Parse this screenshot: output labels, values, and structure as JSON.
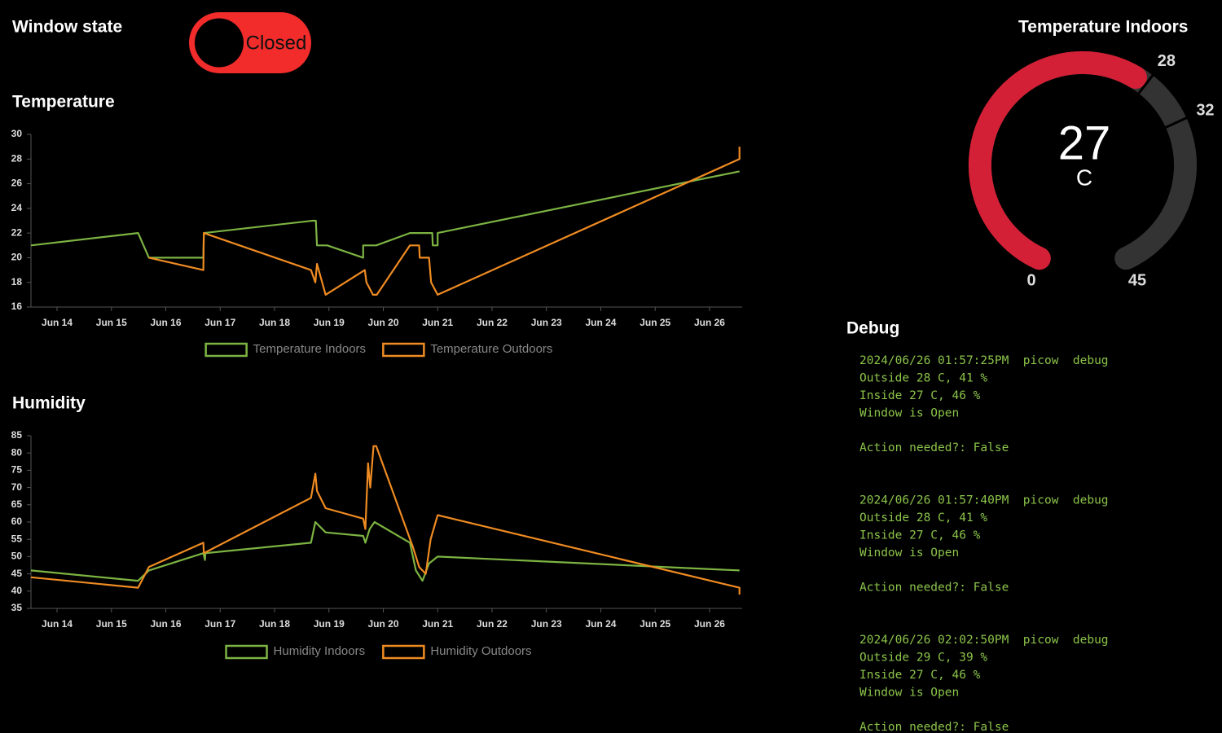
{
  "window_state": {
    "label": "Window state",
    "toggle": "Closed"
  },
  "debug": {
    "title": "Debug",
    "messages": [
      {
        "header": "2024/06/26 01:57:25PM  picow  debug",
        "lines": [
          "Outside 28 C, 41 %",
          "Inside 27 C, 46 %",
          "Window is Open",
          "Action needed?: False"
        ]
      },
      {
        "header": "2024/06/26 01:57:40PM  picow  debug",
        "lines": [
          "Outside 28 C, 41 %",
          "Inside 27 C, 46 %",
          "Window is Open",
          "Action needed?: False"
        ]
      },
      {
        "header": "2024/06/26 02:02:50PM  picow  debug",
        "lines": [
          "Outside 29 C, 39 %",
          "Inside 27 C, 46 %",
          "Window is Open",
          "Action needed?: False"
        ]
      }
    ]
  },
  "chart_data": [
    {
      "type": "line",
      "title": "Temperature",
      "xlim": [
        13.52,
        26.6
      ],
      "ylim": [
        16,
        30
      ],
      "yticks": [
        16,
        18,
        20,
        22,
        24,
        26,
        28,
        30
      ],
      "xticks": [
        {
          "value": 14,
          "label": "Jun 14"
        },
        {
          "value": 15,
          "label": "Jun 15"
        },
        {
          "value": 16,
          "label": "Jun 16"
        },
        {
          "value": 17,
          "label": "Jun 17"
        },
        {
          "value": 18,
          "label": "Jun 18"
        },
        {
          "value": 19,
          "label": "Jun 19"
        },
        {
          "value": 20,
          "label": "Jun 20"
        },
        {
          "value": 21,
          "label": "Jun 21"
        },
        {
          "value": 22,
          "label": "Jun 22"
        },
        {
          "value": 23,
          "label": "Jun 23"
        },
        {
          "value": 24,
          "label": "Jun 24"
        },
        {
          "value": 25,
          "label": "Jun 25"
        },
        {
          "value": 26,
          "label": "Jun 26"
        }
      ],
      "series": [
        {
          "name": "Temperature Indoors",
          "color": "#7cb342",
          "x": [
            13.52,
            15.49,
            15.69,
            16.69,
            16.7,
            18.7,
            18.76,
            18.78,
            18.97,
            19.63,
            19.63,
            19.87,
            20.49,
            20.9,
            20.91,
            21.0,
            21.0,
            26.55
          ],
          "values": [
            21,
            22,
            20,
            20,
            22,
            23,
            23,
            21,
            21,
            20,
            21,
            21,
            22,
            22,
            21,
            21,
            22,
            27
          ]
        },
        {
          "name": "Temperature Outdoors",
          "color": "#ef8b22",
          "x": [
            15.69,
            16.69,
            16.7,
            18.67,
            18.75,
            18.78,
            18.94,
            19.66,
            19.69,
            19.75,
            19.81,
            19.88,
            20.49,
            20.66,
            20.67,
            20.84,
            20.88,
            21.0,
            26.55,
            26.55
          ],
          "values": [
            20,
            19,
            22,
            19,
            18,
            19.5,
            17,
            19,
            18,
            17.5,
            17,
            17,
            21,
            21,
            20,
            20,
            18,
            17,
            28,
            29
          ]
        }
      ]
    },
    {
      "type": "line",
      "title": "Humidity",
      "xlim": [
        13.52,
        26.6
      ],
      "ylim": [
        35,
        85
      ],
      "yticks": [
        35,
        40,
        45,
        50,
        55,
        60,
        65,
        70,
        75,
        80,
        85
      ],
      "xticks": [
        {
          "value": 14,
          "label": "Jun 14"
        },
        {
          "value": 15,
          "label": "Jun 15"
        },
        {
          "value": 16,
          "label": "Jun 16"
        },
        {
          "value": 17,
          "label": "Jun 17"
        },
        {
          "value": 18,
          "label": "Jun 18"
        },
        {
          "value": 19,
          "label": "Jun 19"
        },
        {
          "value": 20,
          "label": "Jun 20"
        },
        {
          "value": 21,
          "label": "Jun 21"
        },
        {
          "value": 22,
          "label": "Jun 22"
        },
        {
          "value": 23,
          "label": "Jun 23"
        },
        {
          "value": 24,
          "label": "Jun 24"
        },
        {
          "value": 25,
          "label": "Jun 25"
        },
        {
          "value": 26,
          "label": "Jun 26"
        }
      ],
      "series": [
        {
          "name": "Humidity Indoors",
          "color": "#7cb342",
          "x": [
            13.52,
            15.49,
            15.69,
            16.69,
            16.72,
            16.73,
            18.67,
            18.75,
            18.94,
            19.63,
            19.67,
            19.75,
            19.84,
            20.49,
            20.6,
            20.72,
            20.84,
            21.0,
            26.55
          ],
          "values": [
            46,
            43,
            46,
            51,
            49,
            51,
            54,
            60,
            57,
            56,
            54,
            58,
            60,
            54,
            46,
            43,
            48,
            50,
            46
          ]
        },
        {
          "name": "Humidity Outdoors",
          "color": "#ef8b22",
          "x": [
            13.52,
            15.49,
            15.69,
            16.69,
            16.7,
            18.67,
            18.75,
            18.78,
            18.94,
            19.63,
            19.67,
            19.72,
            19.76,
            19.82,
            19.87,
            20.54,
            20.66,
            20.78,
            20.87,
            21.0,
            26.55,
            26.55
          ],
          "values": [
            44,
            41,
            47,
            54,
            51,
            67,
            74,
            69,
            64,
            61,
            58,
            77,
            70,
            82,
            82,
            53,
            47,
            45,
            55,
            62,
            41,
            39
          ]
        }
      ]
    },
    {
      "type": "gauge",
      "title": "Temperature Indoors",
      "value": 27,
      "units": "C",
      "min": 0,
      "max": 45,
      "segments": [
        28,
        32
      ],
      "color": "#d42036",
      "track_color": "#333333"
    }
  ]
}
